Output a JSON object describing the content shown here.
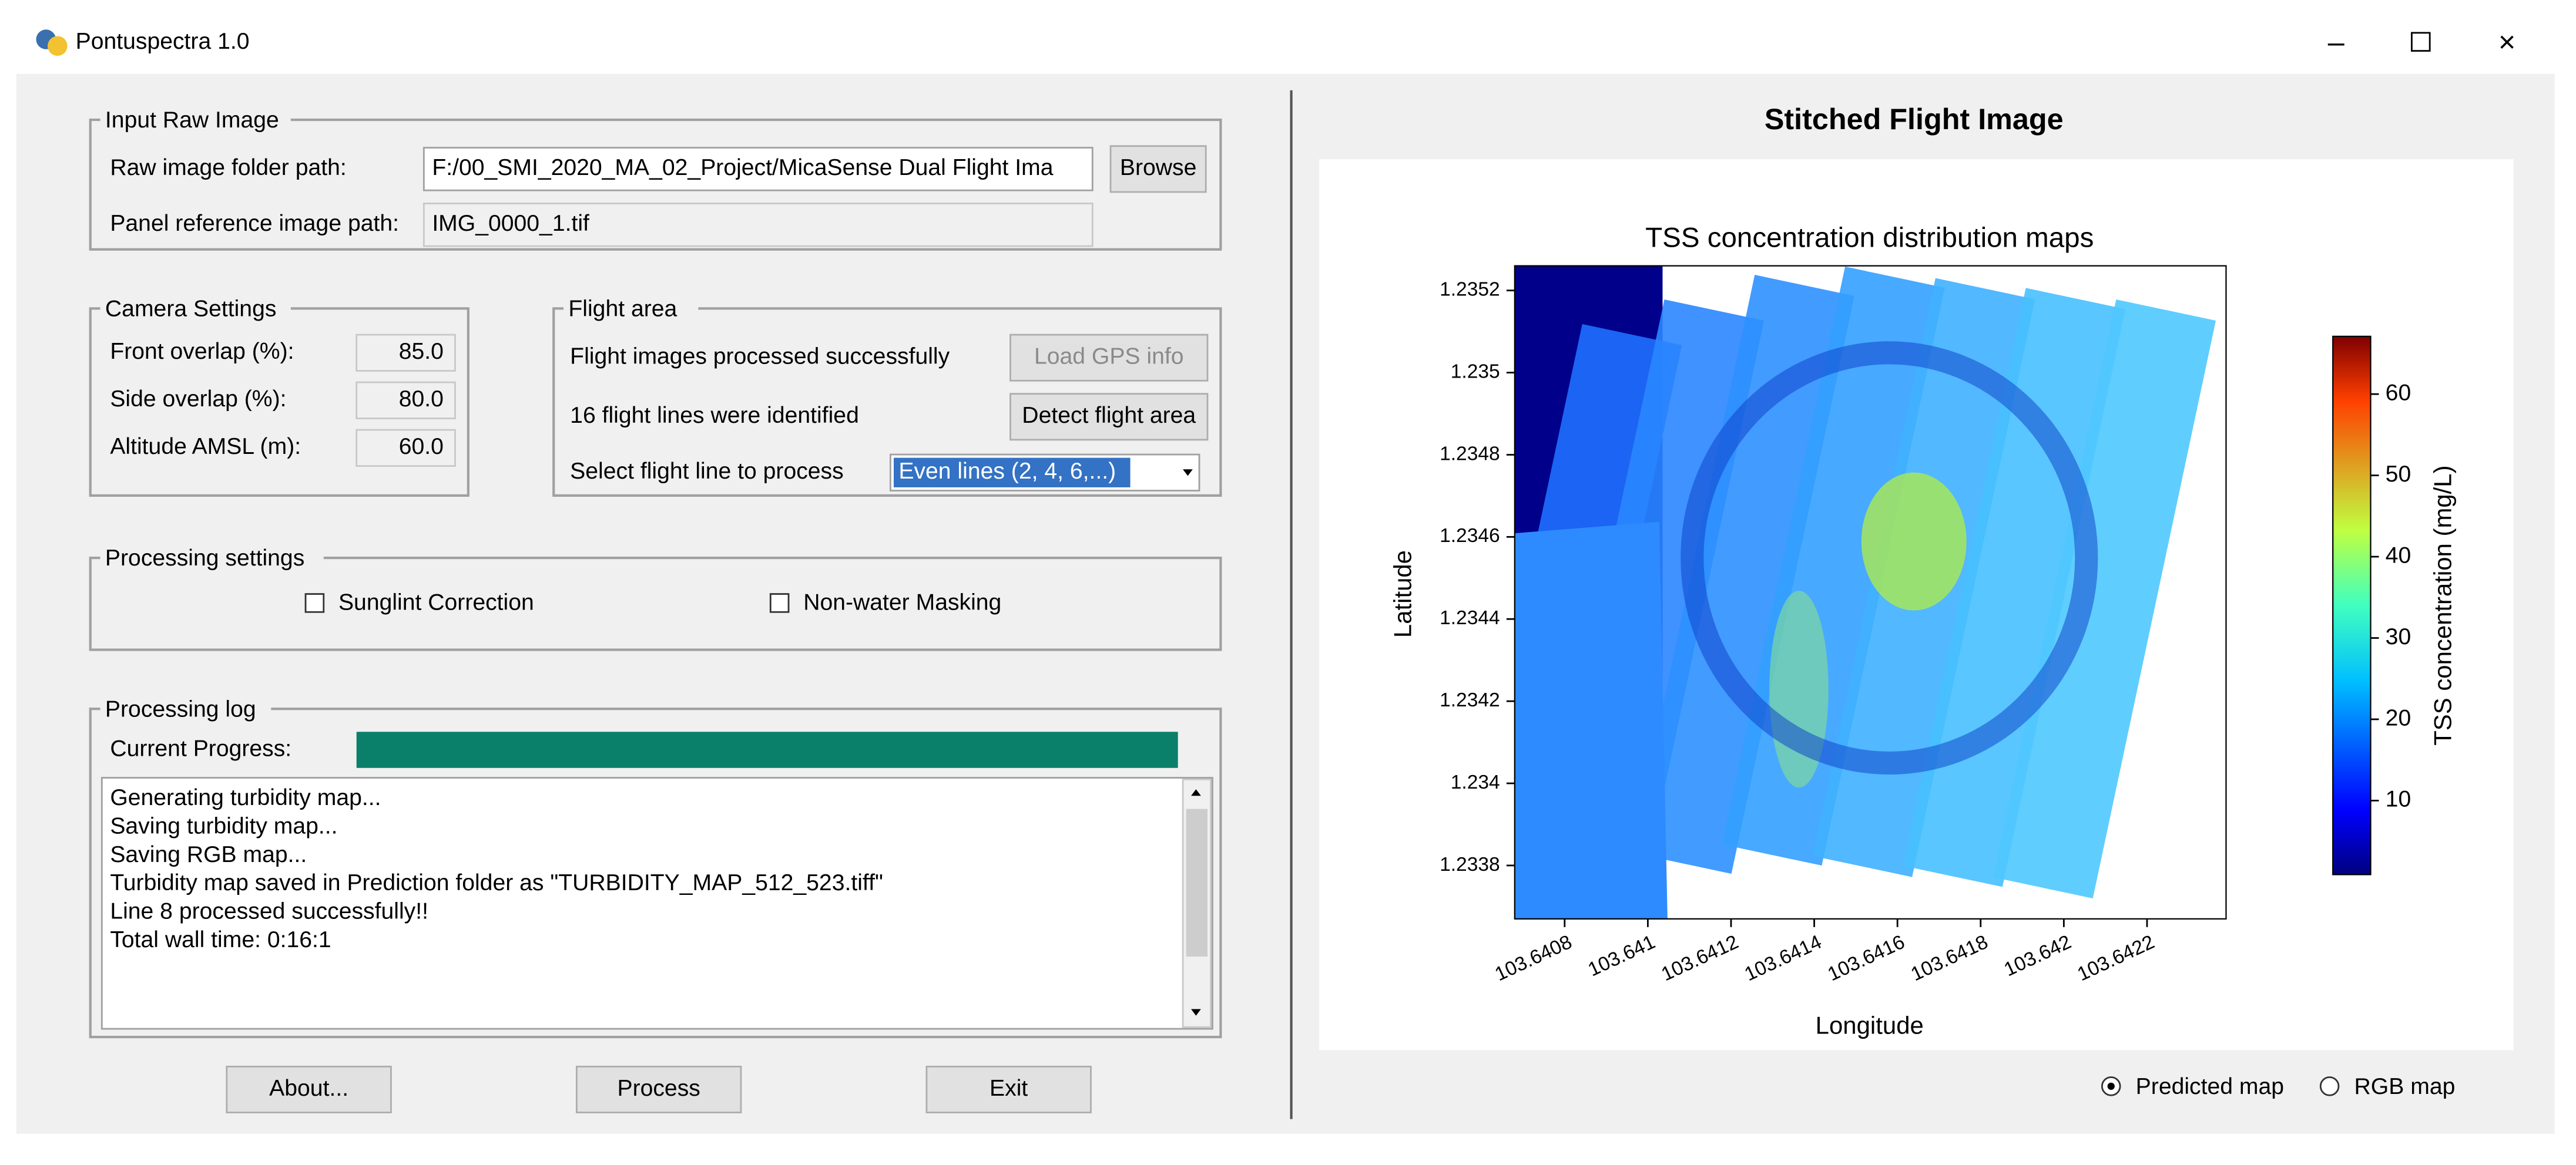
{
  "window": {
    "title": "Pontuspectra 1.0"
  },
  "input_raw_image": {
    "legend": "Input Raw Image",
    "raw_label": "Raw image folder path:",
    "raw_value": "F:/00_SMI_2020_MA_02_Project/MicaSense Dual Flight Ima",
    "browse": "Browse",
    "panel_label": "Panel reference image path:",
    "panel_value": "IMG_0000_1.tif"
  },
  "camera_settings": {
    "legend": "Camera Settings",
    "fields": [
      {
        "label": "Front overlap (%):",
        "value": "85.0"
      },
      {
        "label": "Side overlap (%):",
        "value": "80.0"
      },
      {
        "label": "Altitude AMSL (m):",
        "value": "60.0"
      }
    ]
  },
  "flight_area": {
    "legend": "Flight area",
    "status": "Flight images processed successfully",
    "load_gps": "Load GPS info",
    "lines_identified": "16 flight lines were identified",
    "detect": "Detect flight area",
    "select_label": "Select flight line to process",
    "select_value": "Even lines (2, 4, 6,...)"
  },
  "processing_settings": {
    "legend": "Processing settings",
    "sunglint": "Sunglint Correction",
    "masking": "Non-water Masking"
  },
  "processing_log": {
    "legend": "Processing log",
    "progress_label": "Current Progress:",
    "lines": [
      "Generating turbidity map...",
      "Saving turbidity map...",
      "Saving RGB map...",
      "Turbidity map saved in Prediction folder as \"TURBIDITY_MAP_512_523.tiff\"",
      "Line 8 processed successfully!!",
      "Total wall time: 0:16:1"
    ]
  },
  "buttons": [
    "About...",
    "Process",
    "Exit"
  ],
  "panel_title": "Stitched Flight Image",
  "chart_data": {
    "type": "image-map",
    "title": "TSS concentration distribution maps",
    "x_label": "Longitude",
    "y_label": "Latitude",
    "xlim": [
      103.64068,
      103.64239
    ],
    "xticks": [
      103.6408,
      103.641,
      103.6412,
      103.6414,
      103.6416,
      103.6418,
      103.642,
      103.6422
    ],
    "ylim": [
      1.23367,
      1.23526
    ],
    "yticks": [
      1.2338,
      1.234,
      1.2342,
      1.2344,
      1.2346,
      1.2348,
      1.235,
      1.2352
    ],
    "colorbar": {
      "label": "TSS concentration (mg/L)",
      "lim": [
        0.9,
        67.1
      ],
      "ticks": [
        10,
        20,
        30,
        40,
        50,
        60
      ]
    }
  },
  "radio": [
    "Predicted map",
    "RGB map"
  ]
}
